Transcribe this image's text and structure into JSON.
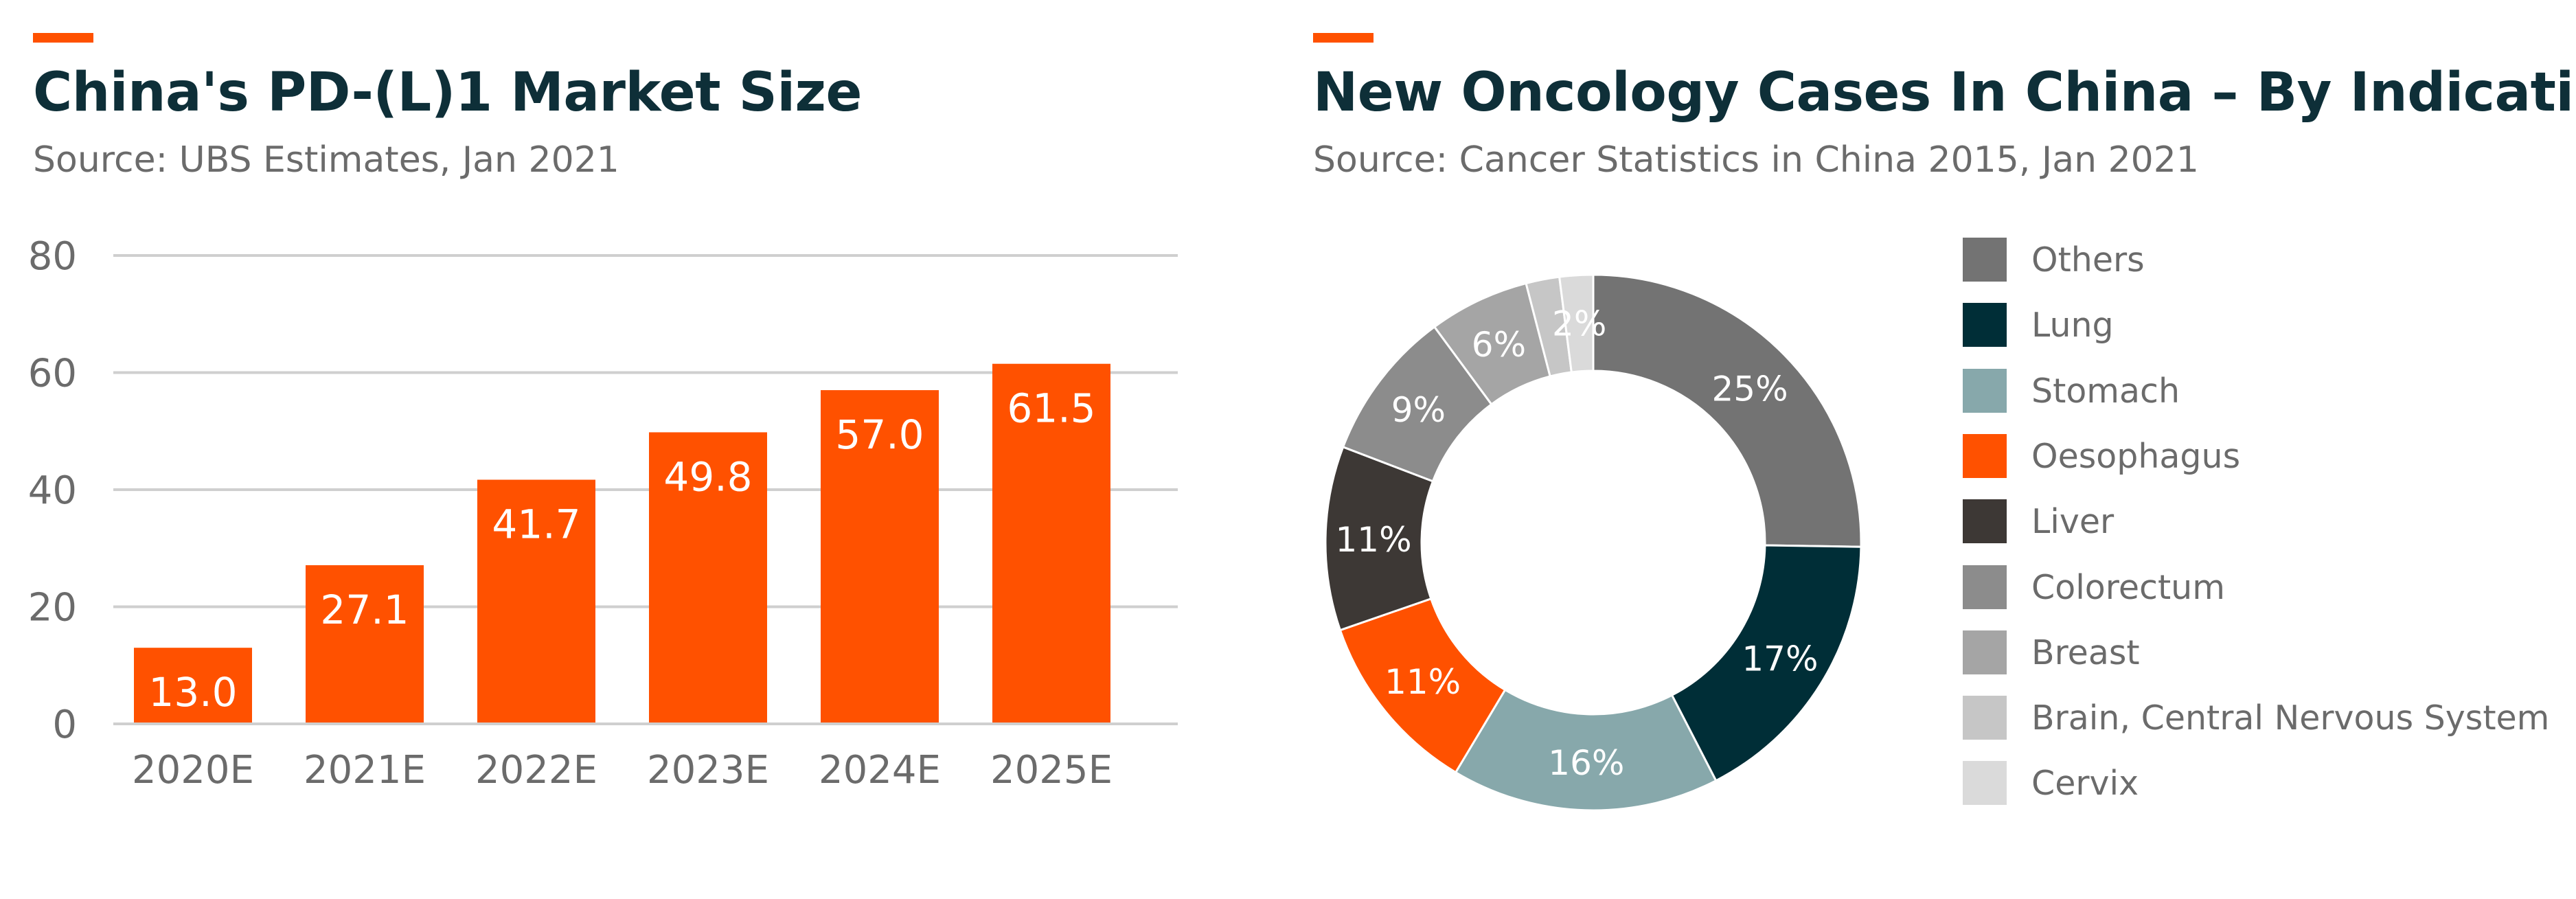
{
  "accent_color": "#ff5100",
  "left": {
    "title": "China's PD-(L)1 Market Size",
    "subtitle": "Source: UBS Estimates, Jan 2021"
  },
  "right": {
    "title": "New Oncology Cases In China – By Indication",
    "subtitle": "Source: Cancer Statistics in China 2015, Jan 2021"
  },
  "chart_data": [
    {
      "type": "bar",
      "title": "China's PD-(L)1 Market Size",
      "categories": [
        "2020E",
        "2021E",
        "2022E",
        "2023E",
        "2024E",
        "2025E"
      ],
      "values": [
        13.0,
        27.1,
        41.7,
        49.8,
        57.0,
        61.5
      ],
      "value_labels": [
        "13.0",
        "27.1",
        "41.7",
        "49.8",
        "57.0",
        "61.5"
      ],
      "yticks": [
        0,
        20,
        40,
        60,
        80
      ],
      "ylim": [
        0,
        80
      ],
      "grid": true,
      "bar_color": "#ff5100",
      "xlabel": "",
      "ylabel": ""
    },
    {
      "type": "pie",
      "title": "New Oncology Cases In China – By Indication",
      "donut": true,
      "legend_position": "right",
      "slices": [
        {
          "name": "Others",
          "value": 25,
          "label": "25%",
          "color": "#737373",
          "label_color": "#ffffff"
        },
        {
          "name": "Lung",
          "value": 17,
          "label": "17%",
          "color": "#002e37",
          "label_color": "#ffffff"
        },
        {
          "name": "Stomach",
          "value": 16,
          "label": "16%",
          "color": "#87a8ab",
          "label_color": "#ffffff"
        },
        {
          "name": "Oesophagus",
          "value": 11,
          "label": "11%",
          "color": "#ff5100",
          "label_color": "#ffffff"
        },
        {
          "name": "Liver",
          "value": 11,
          "label": "11%",
          "color": "#3d3835",
          "label_color": "#ffffff"
        },
        {
          "name": "Colorectum",
          "value": 9,
          "label": "9%",
          "color": "#8c8c8c",
          "label_color": "#ffffff"
        },
        {
          "name": "Breast",
          "value": 6,
          "label": "6%",
          "color": "#a5a5a5",
          "label_color": "#ffffff"
        },
        {
          "name": "Brain, Central Nervous System",
          "value": 2,
          "label": "",
          "color": "#c6c6c6",
          "label_color": "#ffffff"
        },
        {
          "name": "Cervix",
          "value": 2,
          "label": "2%",
          "color": "#dadada",
          "label_color": "#ffffff"
        }
      ]
    }
  ]
}
